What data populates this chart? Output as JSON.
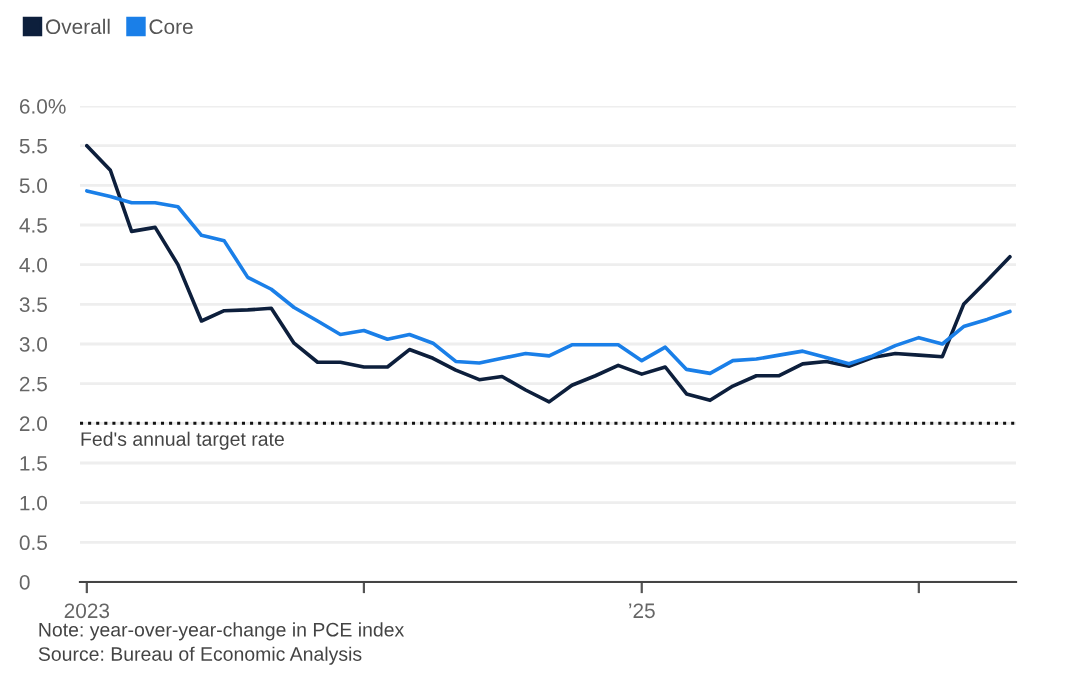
{
  "chart_data": {
    "type": "line",
    "x": [
      "2023-01",
      "2023-02",
      "2023-03",
      "2023-04",
      "2023-05",
      "2023-06",
      "2023-07",
      "2023-08",
      "2023-09",
      "2023-10",
      "2023-11",
      "2023-12",
      "2024-01",
      "2024-02",
      "2024-03",
      "2024-04",
      "2024-05",
      "2024-06",
      "2024-07",
      "2024-08",
      "2024-09",
      "2024-10",
      "2024-11",
      "2024-12",
      "2025-01",
      "2025-02",
      "2025-03",
      "2025-04",
      "2025-05",
      "2025-06",
      "2025-07",
      "2025-08",
      "2025-09",
      "2025-10",
      "2025-11",
      "2025-12",
      "2026-01",
      "2026-02",
      "2026-03",
      "2026-04",
      "2026-05"
    ],
    "series": [
      {
        "name": "Overall",
        "color": "#0d1f3c",
        "values": [
          5.5,
          5.19,
          4.42,
          4.47,
          4.0,
          3.29,
          3.42,
          3.43,
          3.45,
          3.01,
          2.77,
          2.77,
          2.71,
          2.71,
          2.93,
          2.82,
          2.67,
          2.55,
          2.59,
          2.42,
          2.27,
          2.48,
          2.6,
          2.73,
          2.62,
          2.71,
          2.37,
          2.29,
          2.47,
          2.6,
          2.6,
          2.75,
          2.78,
          2.72,
          2.83,
          2.88,
          2.86,
          2.84,
          3.5,
          3.8,
          4.1
        ]
      },
      {
        "name": "Core",
        "color": "#1a7fe8",
        "values": [
          4.93,
          4.86,
          4.78,
          4.78,
          4.73,
          4.37,
          4.3,
          3.84,
          3.69,
          3.46,
          3.29,
          3.12,
          3.17,
          3.06,
          3.12,
          3.01,
          2.78,
          2.76,
          2.82,
          2.88,
          2.85,
          2.99,
          2.99,
          2.99,
          2.79,
          2.96,
          2.68,
          2.63,
          2.79,
          2.81,
          2.86,
          2.91,
          2.83,
          2.75,
          2.85,
          2.98,
          3.08,
          3.0,
          3.22,
          3.31,
          3.41
        ]
      }
    ],
    "xlim": [
      "2022-12-23",
      "2026-05-09"
    ],
    "xticks": [
      {
        "value": "2023-01",
        "label": "2023"
      },
      {
        "value": "2024-01",
        "label": null
      },
      {
        "value": "2025-01",
        "label": "’25"
      },
      {
        "value": "2026-01",
        "label": null
      }
    ],
    "ylim": [
      0,
      6
    ],
    "yticks": [
      0,
      0.5,
      {
        "value": 1,
        "label": "1.0"
      },
      1.5,
      {
        "value": 2,
        "label": "2.0"
      },
      2.5,
      {
        "value": 3,
        "label": "3.0"
      },
      3.5,
      {
        "value": 4,
        "label": "4.0"
      },
      4.5,
      {
        "value": 5,
        "label": "5.0"
      },
      5.5,
      {
        "value": 6,
        "label": "6.0%"
      }
    ],
    "grid": "y",
    "legend": "top left",
    "ref_lines": [
      {
        "axis": "y",
        "value": 2.0,
        "label": "Fed's annual target rate",
        "color": "#111111",
        "line_style": "dotted"
      }
    ],
    "annotations": [
      "Note: year-over-year-change in PCE index",
      "Source: Bureau of Economic Analysis"
    ]
  }
}
